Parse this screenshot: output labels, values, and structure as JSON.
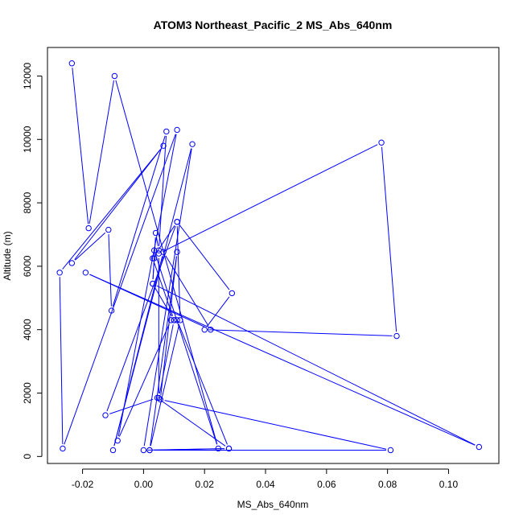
{
  "chart_data": {
    "type": "line",
    "title": "ATOM3 Northeast_Pacific_2 MS_Abs_640nm",
    "xlabel": "MS_Abs_640nm",
    "ylabel": "Altitude (m)",
    "xlim": [
      -0.0315,
      0.1165
    ],
    "ylim": [
      -220,
      12900
    ],
    "xticks": [
      -0.02,
      0.0,
      0.02,
      0.04,
      0.06,
      0.08,
      0.1
    ],
    "xtick_labels": [
      "-0.02",
      "0.00",
      "0.02",
      "0.04",
      "0.06",
      "0.08",
      "0.10"
    ],
    "yticks": [
      0,
      2000,
      4000,
      6000,
      8000,
      10000,
      12000
    ],
    "ytick_labels": [
      "0",
      "2000",
      "4000",
      "6000",
      "8000",
      "10000",
      "12000"
    ],
    "grid": false,
    "legend": "none",
    "marker": "open-circle",
    "line_color": "#0000ff",
    "series": [
      {
        "x": [
          -0.0235,
          -0.018,
          -0.0095,
          0.0245,
          0.0035,
          0.0035,
          0.003,
          0.004,
          0.005,
          0.0075,
          -0.0105,
          -0.0115,
          -0.0235,
          0.0065,
          -0.0275,
          -0.0265,
          0.011,
          -0.0085,
          0.009,
          0.011,
          0.028,
          0.0,
          0.016,
          -0.01,
          0.0065,
          0.022,
          -0.019,
          0.11,
          0.003,
          0.01,
          0.003,
          0.011,
          -0.0125,
          0.0045,
          0.028,
          0.002,
          0.011,
          0.0055,
          0.081,
          0.002,
          0.012,
          0.011,
          0.029,
          0.02,
          0.083,
          0.078,
          0.005,
          0.005,
          0.01
        ],
        "y": [
          12400,
          7200,
          12000,
          250,
          6500,
          6250,
          5450,
          7050,
          6500,
          10250,
          4600,
          7150,
          6100,
          9800,
          5800,
          250,
          10300,
          500,
          4300,
          4300,
          250,
          200,
          9850,
          200,
          6450,
          4000,
          5800,
          300,
          5450,
          4300,
          6250,
          7400,
          1300,
          1850,
          250,
          200,
          6450,
          1800,
          200,
          200,
          4300,
          7400,
          5150,
          4000,
          3800,
          9900,
          6400,
          1850,
          4300
        ]
      }
    ]
  }
}
